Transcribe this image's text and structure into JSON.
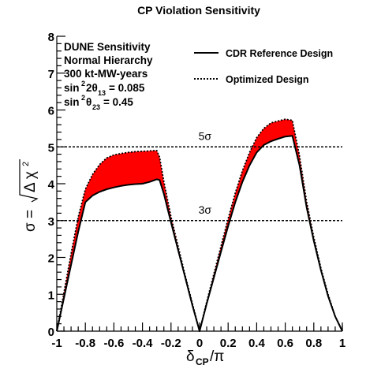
{
  "chart_data": {
    "type": "area",
    "title": "CP Violation Sensitivity",
    "xlabel": "δ_CP/π",
    "ylabel": "σ = √(Δχ²)",
    "xlim": [
      -1,
      1
    ],
    "ylim": [
      0,
      8
    ],
    "x_ticks": [
      -1,
      -0.8,
      -0.6,
      -0.4,
      -0.2,
      0,
      0.2,
      0.4,
      0.6,
      0.8,
      1
    ],
    "x_tick_labels": [
      "-1",
      "-0.8",
      "-0.6",
      "-0.4",
      "-0.2",
      "0",
      "0.2",
      "0.4",
      "0.6",
      "0.8",
      "1"
    ],
    "y_ticks": [
      0,
      1,
      2,
      3,
      4,
      5,
      6,
      7,
      8
    ],
    "y_tick_labels": [
      "0",
      "1",
      "2",
      "3",
      "4",
      "5",
      "6",
      "7",
      "8"
    ],
    "grid": false,
    "legend_position": "top-right",
    "info_lines": [
      "DUNE Sensitivity",
      "Normal Hierarchy",
      "300 kt-MW-years"
    ],
    "params": {
      "theta13_value": "= 0.085",
      "theta23_value": "= 0.45"
    },
    "reference_lines": [
      {
        "y": 5,
        "label": "5σ"
      },
      {
        "y": 3,
        "label": "3σ"
      }
    ],
    "band_color": "#ff0000",
    "series": [
      {
        "name": "CDR Reference Design",
        "style": "solid",
        "x": [
          -1,
          -0.95,
          -0.9,
          -0.85,
          -0.8,
          -0.75,
          -0.7,
          -0.65,
          -0.6,
          -0.55,
          -0.5,
          -0.45,
          -0.4,
          -0.35,
          -0.3,
          -0.28,
          -0.25,
          -0.2,
          -0.15,
          -0.1,
          -0.05,
          0,
          0.05,
          0.1,
          0.15,
          0.2,
          0.25,
          0.3,
          0.35,
          0.4,
          0.45,
          0.5,
          0.55,
          0.6,
          0.65,
          0.7,
          0.75,
          0.8,
          0.85,
          0.9,
          0.95,
          1
        ],
        "y": [
          0,
          0.9,
          1.8,
          2.7,
          3.5,
          3.68,
          3.78,
          3.85,
          3.9,
          3.94,
          3.97,
          3.99,
          4.0,
          4.05,
          4.12,
          4.1,
          3.72,
          2.95,
          2.2,
          1.45,
          0.7,
          0,
          0.75,
          1.45,
          2.15,
          2.85,
          3.5,
          4.05,
          4.5,
          4.85,
          5.05,
          5.15,
          5.22,
          5.28,
          5.3,
          4.5,
          3.35,
          2.45,
          1.65,
          0.95,
          0.4,
          0
        ]
      },
      {
        "name": "Optimized Design",
        "style": "dotted",
        "x": [
          -1,
          -0.95,
          -0.9,
          -0.85,
          -0.8,
          -0.75,
          -0.7,
          -0.65,
          -0.6,
          -0.55,
          -0.5,
          -0.45,
          -0.4,
          -0.35,
          -0.3,
          -0.28,
          -0.25,
          -0.2,
          -0.15,
          -0.1,
          -0.05,
          0,
          0.05,
          0.1,
          0.15,
          0.2,
          0.25,
          0.3,
          0.35,
          0.4,
          0.45,
          0.5,
          0.55,
          0.6,
          0.65,
          0.7,
          0.75,
          0.8,
          0.85,
          0.9,
          0.95,
          1
        ],
        "y": [
          0,
          1.05,
          2.1,
          3.1,
          3.85,
          4.25,
          4.52,
          4.7,
          4.78,
          4.82,
          4.85,
          4.87,
          4.88,
          4.89,
          4.9,
          4.72,
          4.05,
          3.1,
          2.3,
          1.5,
          0.75,
          0,
          0.8,
          1.55,
          2.3,
          3.05,
          3.75,
          4.35,
          4.85,
          5.25,
          5.5,
          5.65,
          5.7,
          5.75,
          5.72,
          4.75,
          3.5,
          2.55,
          1.7,
          1.0,
          0.4,
          0
        ]
      }
    ]
  }
}
